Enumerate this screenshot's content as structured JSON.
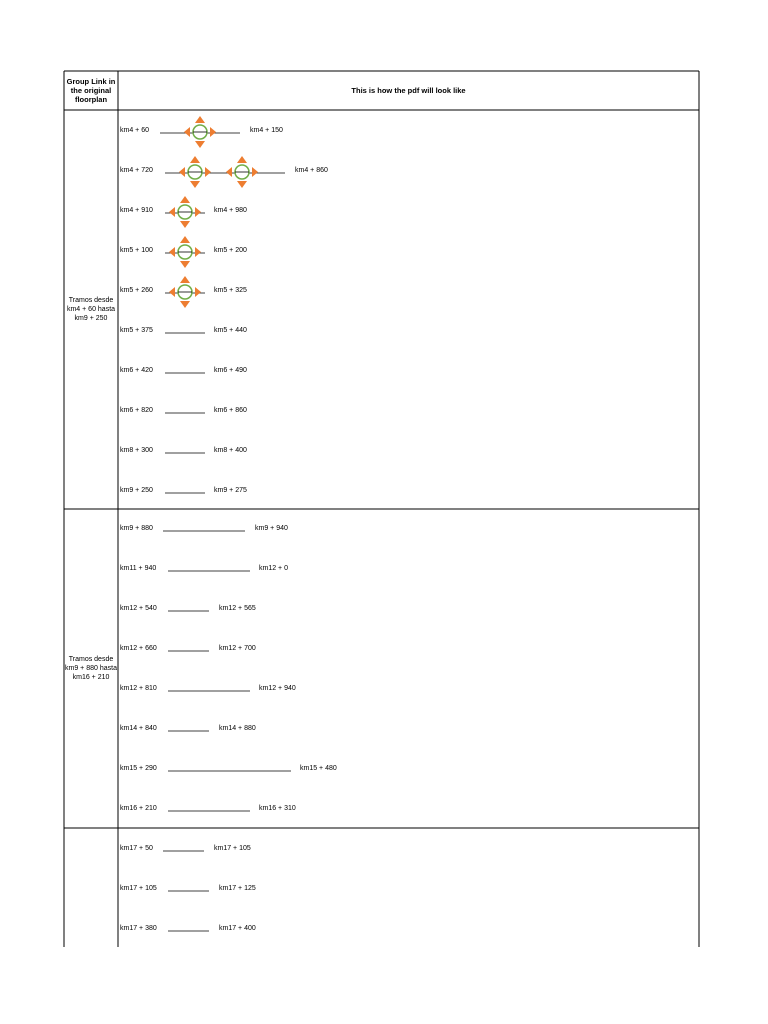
{
  "header": {
    "left": "Group Link in the original floorplan",
    "right": "This is how the pdf will look like"
  },
  "groups": [
    {
      "label": "Tramos desde km4 + 60 hasta km9 + 250",
      "rows": [
        {
          "start": "km4 + 60",
          "end": "km4 + 150"
        },
        {
          "start": "km4 + 720",
          "end": "km4 + 860"
        },
        {
          "start": "km4 + 910",
          "end": "km4 + 980"
        },
        {
          "start": "km5 + 100",
          "end": "km5 + 200"
        },
        {
          "start": "km5 + 260",
          "end": "km5 + 325"
        },
        {
          "start": "km5 + 375",
          "end": "km5 + 440"
        },
        {
          "start": "km6 + 420",
          "end": "km6 + 490"
        },
        {
          "start": "km6 + 820",
          "end": "km6 + 860"
        },
        {
          "start": "km8 + 300",
          "end": "km8 + 400"
        },
        {
          "start": "km9 + 250",
          "end": "km9 + 275"
        }
      ]
    },
    {
      "label": "Tramos desde km9 + 880 hasta km16 + 210",
      "rows": [
        {
          "start": "km9 + 880",
          "end": "km9 + 940"
        },
        {
          "start": "km11 + 940",
          "end": "km12 + 0"
        },
        {
          "start": "km12 + 540",
          "end": "km12 + 565"
        },
        {
          "start": "km12 + 660",
          "end": "km12 + 700"
        },
        {
          "start": "km12 + 810",
          "end": "km12 + 940"
        },
        {
          "start": "km14 + 840",
          "end": "km14 + 880"
        },
        {
          "start": "km15 + 290",
          "end": "km15 + 480"
        },
        {
          "start": "km16 + 210",
          "end": "km16 + 310"
        }
      ]
    },
    {
      "rows": [
        {
          "start": "km17 + 50",
          "end": "km17 + 105"
        },
        {
          "start": "km17 + 105",
          "end": "km17 + 125"
        },
        {
          "start": "km17 + 380",
          "end": "km17 + 400"
        }
      ]
    }
  ]
}
